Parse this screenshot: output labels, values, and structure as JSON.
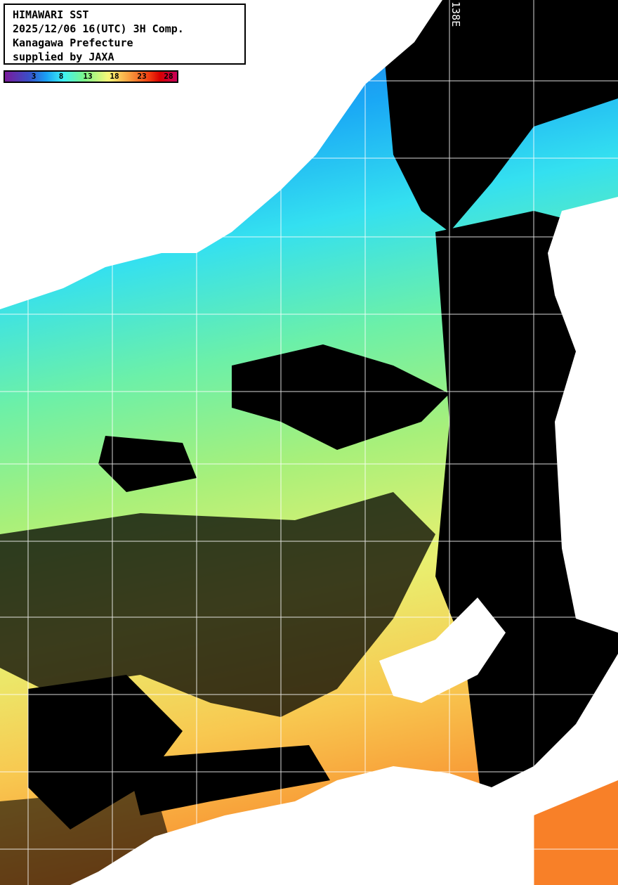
{
  "title": {
    "lines": [
      "HIMAWARI SST",
      "2025/12/06 16(UTC) 3H Comp.",
      "Kanagawa Prefecture",
      "supplied by JAXA"
    ]
  },
  "colorbar": {
    "ticks": [
      "3",
      "8",
      "13",
      "18",
      "23",
      "28"
    ],
    "unit_range": [
      0,
      31
    ]
  },
  "grid": {
    "longitude_label": "138E"
  },
  "colors": {
    "land": "#ffffff",
    "cloud": "#000000",
    "grid": "#ffffff"
  }
}
